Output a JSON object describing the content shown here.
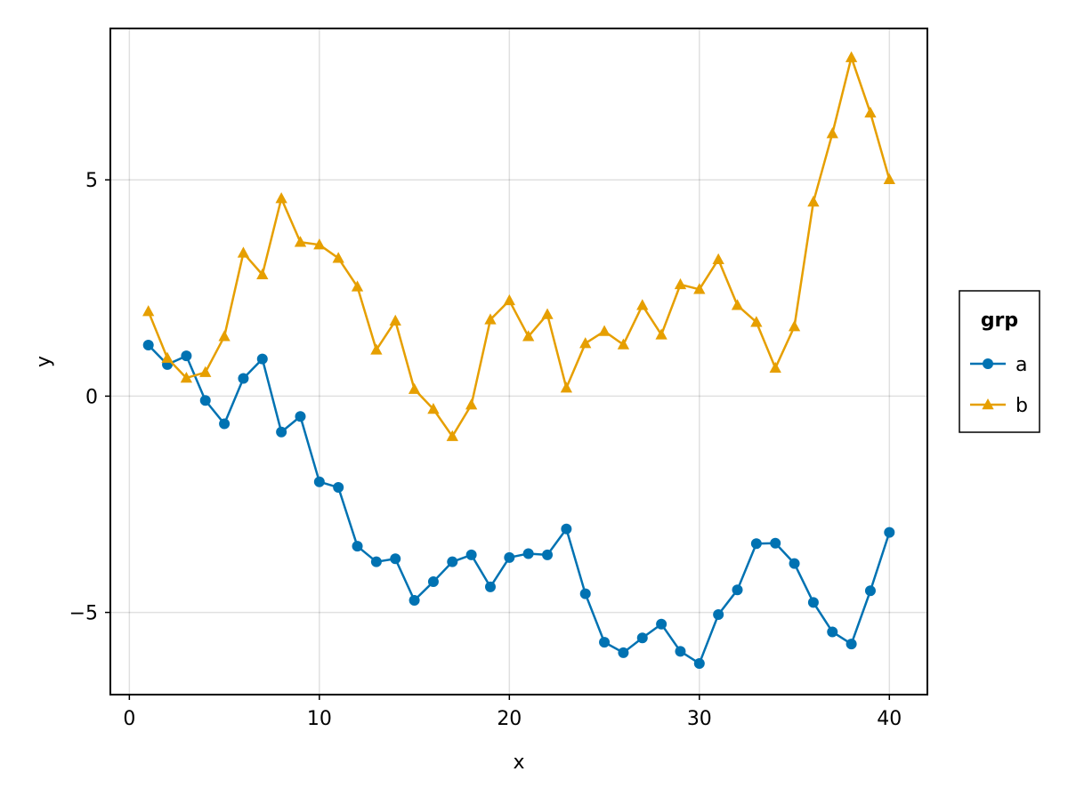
{
  "chart_data": {
    "type": "line",
    "xlabel": "x",
    "ylabel": "y",
    "xlim": [
      -1,
      42
    ],
    "ylim": [
      -6.9,
      8.5
    ],
    "x_ticks": [
      0,
      10,
      20,
      30,
      40
    ],
    "y_ticks": [
      -5,
      0,
      5
    ],
    "y_tick_labels": [
      "−5",
      "0",
      "5"
    ],
    "grid": true,
    "legend": {
      "title": "grp",
      "placement": "right"
    },
    "x": [
      1,
      2,
      3,
      4,
      5,
      6,
      7,
      8,
      9,
      10,
      11,
      12,
      13,
      14,
      15,
      16,
      17,
      18,
      19,
      20,
      21,
      22,
      23,
      24,
      25,
      26,
      27,
      28,
      29,
      30,
      31,
      32,
      33,
      34,
      35,
      36,
      37,
      38,
      39,
      40
    ],
    "series": [
      {
        "name": "a",
        "color": "#0072b2",
        "marker": "circle",
        "values": [
          1.18,
          0.73,
          0.93,
          -0.1,
          -0.64,
          0.41,
          0.86,
          -0.83,
          -0.47,
          -1.98,
          -2.11,
          -3.47,
          -3.83,
          -3.76,
          -4.72,
          -4.29,
          -3.83,
          -3.67,
          -4.41,
          -3.73,
          -3.64,
          -3.67,
          -3.07,
          -4.57,
          -5.69,
          -5.93,
          -5.59,
          -5.27,
          -5.9,
          -6.18,
          -5.05,
          -4.48,
          -3.41,
          -3.4,
          -3.87,
          -4.77,
          -5.45,
          -5.73,
          -4.5,
          -3.15
        ]
      },
      {
        "name": "b",
        "color": "#e69f00",
        "marker": "triangle",
        "values": [
          1.96,
          0.88,
          0.42,
          0.55,
          1.38,
          3.31,
          2.81,
          4.57,
          3.56,
          3.5,
          3.19,
          2.53,
          1.07,
          1.74,
          0.16,
          -0.3,
          -0.93,
          -0.2,
          1.77,
          2.21,
          1.38,
          1.89,
          0.19,
          1.22,
          1.5,
          1.19,
          2.1,
          1.42,
          2.58,
          2.47,
          3.16,
          2.1,
          1.71,
          0.65,
          1.61,
          4.49,
          6.07,
          7.83,
          6.55,
          5.01
        ]
      }
    ]
  }
}
